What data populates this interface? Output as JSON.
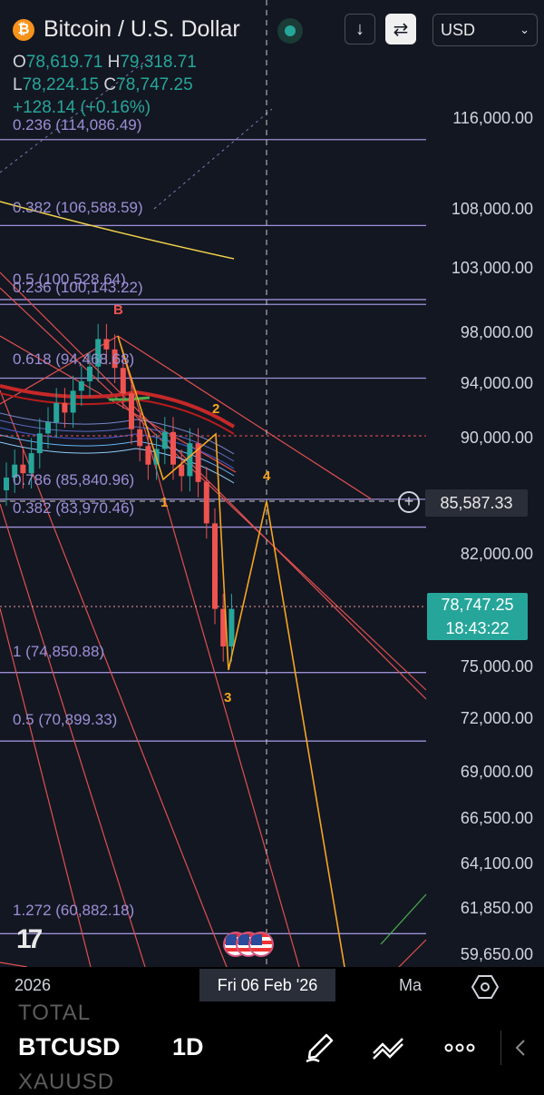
{
  "header": {
    "symbol_icon": "bitcoin-icon",
    "symbol_title": "Bitcoin / U.S. Dollar",
    "live_status": "live-dot-icon",
    "currency": "USD",
    "buttons": [
      "arrow-down-icon",
      "compare-icon"
    ]
  },
  "ohlc": {
    "open_label": "O",
    "open": "78,619.71",
    "high_label": "H",
    "high": "79,318.71",
    "low_label": "L",
    "low": "78,224.15",
    "close_label": "C",
    "close": "78,747.25",
    "change": "+128.14 (+0.16%)"
  },
  "fib_levels": [
    {
      "label": "0.236 (114,086.49)",
      "price": 114086.49
    },
    {
      "label": "0.382 (106,588.59)",
      "price": 106588.59
    },
    {
      "label": "0.5 (100,528.64)",
      "price": 100528.64
    },
    {
      "label": "0.236 (100,143.22)",
      "price": 100143.22
    },
    {
      "label": "0.618 (94,468.68)",
      "price": 94468.68
    },
    {
      "label": "0.786 (85,840.96)",
      "price": 85840.96
    },
    {
      "label": "0.382 (83,970.46)",
      "price": 83970.46
    },
    {
      "label": "1 (74,850.88)",
      "price": 74850.88
    },
    {
      "label": "0.5 (70,899.33)",
      "price": 70899.33
    },
    {
      "label": "1.272 (60,882.18)",
      "price": 60882.18
    }
  ],
  "wave_labels": {
    "b": "B",
    "w1": "1",
    "w2": "2",
    "w3": "3",
    "w4": "4"
  },
  "crosshair": {
    "price": "85,587.33",
    "date": "Fri 06 Feb '26"
  },
  "current_price": {
    "price": "78,747.25",
    "countdown": "18:43:22"
  },
  "x_axis": {
    "left": "2026",
    "right": "Ma"
  },
  "chart_data": {
    "type": "line",
    "title": "Bitcoin / U.S. Dollar",
    "interval": "1D",
    "y_scale": "log",
    "ylim": [
      58500,
      122000
    ],
    "y_ticks": [
      "116,000.00",
      "108,000.00",
      "103,000.00",
      "98,000.00",
      "94,000.00",
      "90,000.00",
      "82,000.00",
      "75,000.00",
      "72,000.00",
      "69,000.00",
      "66,500.00",
      "64,100.00",
      "61,850.00",
      "59,650.00"
    ],
    "x_ticks": [
      "2026",
      "Ma"
    ],
    "series": [
      {
        "values": [
          87200,
          88100,
          87500,
          88900,
          90300,
          91100,
          92500,
          91800,
          93400,
          94100,
          95200,
          97300,
          96500,
          95100,
          93200,
          90600,
          89400,
          88100,
          89200,
          90400,
          88100,
          87300,
          89600,
          86900,
          84100,
          78600,
          76300,
          78600
        ]
      }
    ],
    "last": {
      "open": 78619.71,
      "high": 79318.71,
      "low": 78224.15,
      "close": 78747.25,
      "change": "+128.14 (+0.16%)"
    },
    "grid": false,
    "colors": {
      "up": "#26a69a",
      "down": "#ef5350",
      "fib": "#9c8fd6",
      "wave": "#f5a623",
      "trend": "#e0504f",
      "ma": "#f0d24a"
    }
  },
  "bottom": {
    "ghost_top": "TOTAL",
    "ticker": "BTCUSD",
    "interval": "1D",
    "ghost_bottom": "XAUUSD",
    "tools": [
      "pencil-icon",
      "indicator-icon",
      "more-icon",
      "back-icon"
    ]
  }
}
